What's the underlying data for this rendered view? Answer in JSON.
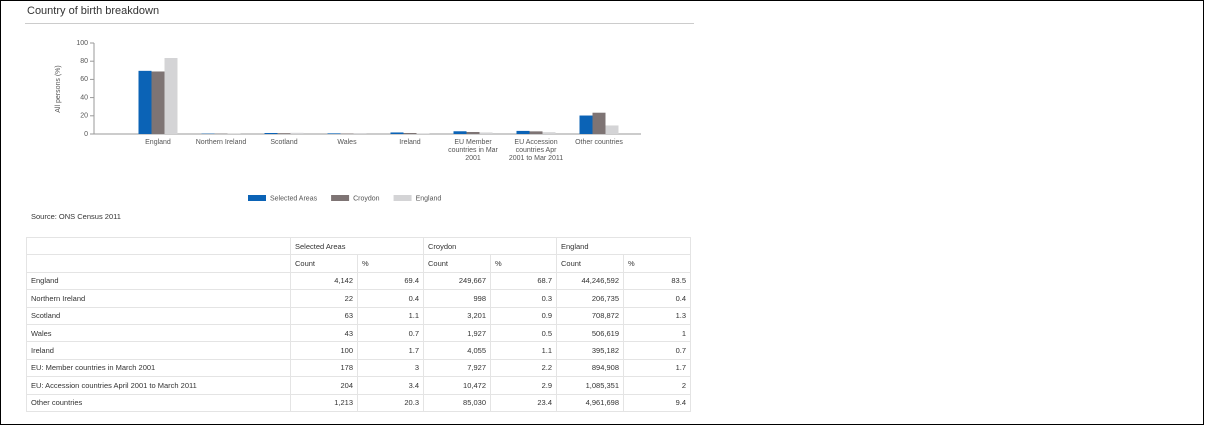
{
  "title": "Country of birth breakdown",
  "chart_data": {
    "type": "bar",
    "y_label": "All persons (%)",
    "categories": [
      "England",
      "Northern Ireland",
      "Scotland",
      "Wales",
      "Ireland",
      "EU Member countries in Mar 2001",
      "EU Accession countries Apr 2001 to Mar 2011",
      "Other countries"
    ],
    "series": [
      {
        "name": "Selected Areas",
        "color": "#0b63b6",
        "values": [
          69.4,
          0.4,
          1.1,
          0.7,
          1.7,
          3,
          3.4,
          20.3
        ]
      },
      {
        "name": "Croydon",
        "color": "#7e7474",
        "values": [
          68.7,
          0.3,
          0.9,
          0.5,
          1.1,
          2.2,
          2.9,
          23.4
        ]
      },
      {
        "name": "England",
        "color": "#d4d4d6",
        "values": [
          83.5,
          0.4,
          1.3,
          1,
          0.7,
          1.7,
          2,
          9.4
        ]
      }
    ],
    "ylim": [
      0,
      100
    ],
    "yticks": [
      0,
      20,
      40,
      60,
      80,
      100
    ],
    "legend": "bottom"
  },
  "source": "Source: ONS Census 2011",
  "table": {
    "groups": [
      "Selected Areas",
      "Croydon",
      "England"
    ],
    "subheaders": [
      "Count",
      "%",
      "Count",
      "%",
      "Count",
      "%"
    ],
    "rows": [
      [
        "England",
        "4,142",
        "69.4",
        "249,667",
        "68.7",
        "44,246,592",
        "83.5"
      ],
      [
        "Northern Ireland",
        "22",
        "0.4",
        "998",
        "0.3",
        "206,735",
        "0.4"
      ],
      [
        "Scotland",
        "63",
        "1.1",
        "3,201",
        "0.9",
        "708,872",
        "1.3"
      ],
      [
        "Wales",
        "43",
        "0.7",
        "1,927",
        "0.5",
        "506,619",
        "1"
      ],
      [
        "Ireland",
        "100",
        "1.7",
        "4,055",
        "1.1",
        "395,182",
        "0.7"
      ],
      [
        "EU: Member countries in March 2001",
        "178",
        "3",
        "7,927",
        "2.2",
        "894,908",
        "1.7"
      ],
      [
        "EU: Accession countries April 2001 to March 2011",
        "204",
        "3.4",
        "10,472",
        "2.9",
        "1,085,351",
        "2"
      ],
      [
        "Other countries",
        "1,213",
        "20.3",
        "85,030",
        "23.4",
        "4,961,698",
        "9.4"
      ]
    ]
  }
}
